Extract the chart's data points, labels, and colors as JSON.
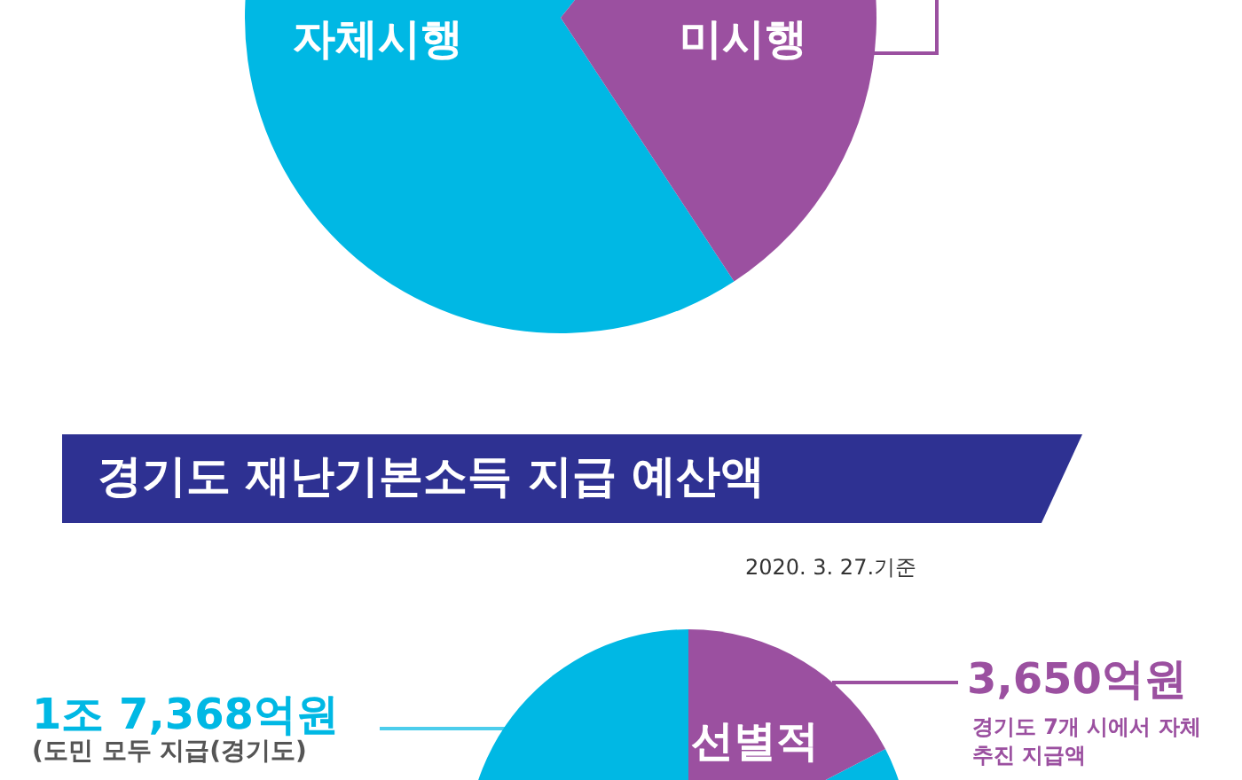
{
  "chart_data": [
    {
      "type": "pie",
      "categories": [
        "자체시행",
        "미시행"
      ],
      "values": [
        70,
        30
      ],
      "colors": [
        "#00b8e4",
        "#9b50a0"
      ]
    },
    {
      "type": "pie",
      "title": "경기도 재난기본소득 지급 예산액",
      "subtitle": "2020. 3. 27.기준",
      "categories": [
        null,
        "선별적"
      ],
      "values": [
        82.6,
        17.4
      ],
      "colors": [
        "#00b8e4",
        "#9b50a0"
      ],
      "annotations": [
        "1조 7,368억원",
        "(도민 모두 지급(경기도)",
        "3,650억원",
        "경기도 7개 시에서 자체추진 지급액"
      ]
    }
  ]
}
